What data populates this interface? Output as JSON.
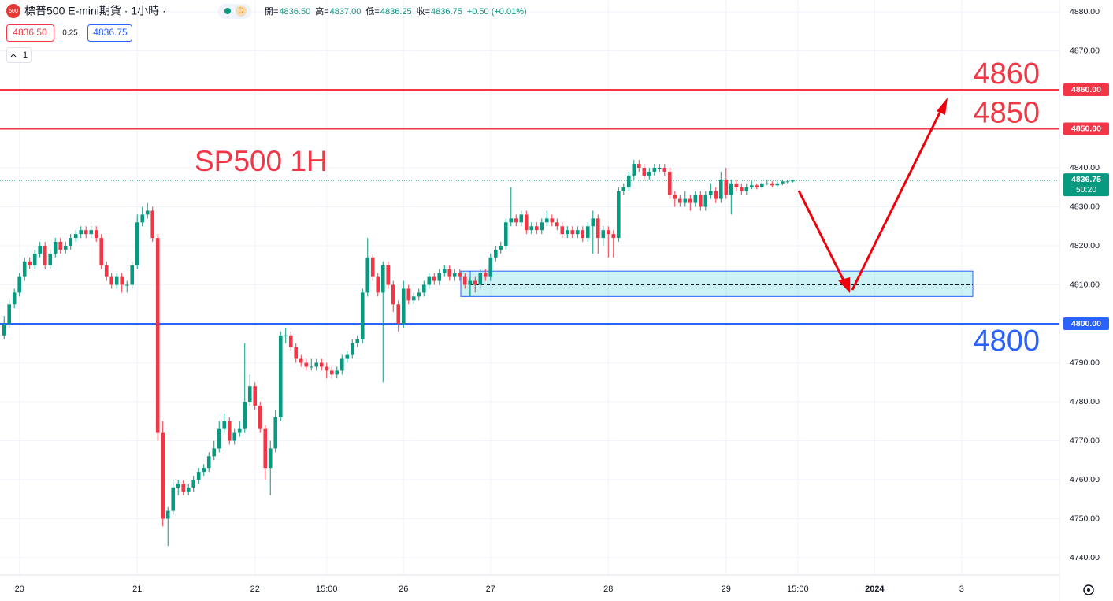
{
  "header": {
    "icon": "500",
    "symbol": "標普500 E-mini期貨 · 1小時 ·",
    "badge": "D",
    "ohlc": [
      {
        "label": "開=",
        "value": "4836.50"
      },
      {
        "label": "高=",
        "value": "4837.00"
      },
      {
        "label": "低=",
        "value": "4836.25"
      },
      {
        "label": "收=",
        "value": "4836.75"
      }
    ],
    "change": "+0.50 (+0.01%)",
    "bid": "4836.50",
    "spread": "0.25",
    "ask": "4836.75",
    "interval": "1"
  },
  "chart_data": {
    "type": "candlestick",
    "title": "SP500 1H",
    "up_color": "#089981",
    "down_color": "#f23645",
    "grid": true,
    "ylim": [
      4740,
      4880
    ],
    "yticks": [
      {
        "value": 4740,
        "label": "4740.00"
      },
      {
        "value": 4750,
        "label": "4750.00"
      },
      {
        "value": 4760,
        "label": "4760.00"
      },
      {
        "value": 4770,
        "label": "4770.00"
      },
      {
        "value": 4780,
        "label": "4780.00"
      },
      {
        "value": 4790,
        "label": "4790.00"
      },
      {
        "value": 4800,
        "label": "4800.00"
      },
      {
        "value": 4810,
        "label": "4810.00"
      },
      {
        "value": 4820,
        "label": "4820.00"
      },
      {
        "value": 4830,
        "label": "4830.00"
      },
      {
        "value": 4840,
        "label": "4840.00"
      },
      {
        "value": 4850,
        "label": "4850.00"
      },
      {
        "value": 4860,
        "label": "4860.00"
      },
      {
        "value": 4870,
        "label": "4870.00"
      },
      {
        "value": 4880,
        "label": "4880.00"
      }
    ],
    "xlim": [
      -0.8,
      206.1
    ],
    "xticks": [
      {
        "value": 3,
        "label": "20"
      },
      {
        "value": 26,
        "label": "21"
      },
      {
        "value": 49,
        "label": "22"
      },
      {
        "value": 63,
        "label": "15:00"
      },
      {
        "value": 78,
        "label": "26"
      },
      {
        "value": 95,
        "label": "27"
      },
      {
        "value": 118,
        "label": "28"
      },
      {
        "value": 141,
        "label": "29"
      },
      {
        "value": 155,
        "label": "15:00"
      },
      {
        "value": 170,
        "label": "2024"
      },
      {
        "value": 187,
        "label": "3"
      }
    ],
    "hlines": [
      {
        "value": 4860,
        "label": "4860.00",
        "text": "4860",
        "color": "#f23645"
      },
      {
        "value": 4850,
        "label": "4850.00",
        "text": "4850",
        "color": "#f23645"
      },
      {
        "value": 4800,
        "label": "4800.00",
        "text": "4800",
        "color": "#2962ff"
      }
    ],
    "current": {
      "value": 4836.75,
      "label": "4836.75",
      "countdown": "50:20",
      "color": "#089981"
    },
    "zone": {
      "from": 4807,
      "to": 4813.5,
      "mid": 4810
    },
    "ohlc": [
      [
        4797,
        4802,
        4796,
        4800
      ],
      [
        4800,
        4806,
        4799,
        4805
      ],
      [
        4805,
        4809,
        4804,
        4808
      ],
      [
        4808,
        4813,
        4807,
        4812
      ],
      [
        4812,
        4817,
        4811,
        4816
      ],
      [
        4816,
        4817,
        4814,
        4815
      ],
      [
        4815,
        4819,
        4814,
        4818
      ],
      [
        4818,
        4821,
        4817,
        4820
      ],
      [
        4820,
        4821,
        4814,
        4815
      ],
      [
        4815,
        4819,
        4814,
        4818
      ],
      [
        4818,
        4822,
        4817,
        4821
      ],
      [
        4821,
        4822,
        4818,
        4819
      ],
      [
        4819,
        4821,
        4818,
        4820
      ],
      [
        4820,
        4823,
        4819,
        4822
      ],
      [
        4822,
        4824,
        4821,
        4823
      ],
      [
        4823,
        4825,
        4822,
        4824
      ],
      [
        4824,
        4825,
        4822,
        4823
      ],
      [
        4823,
        4825,
        4822,
        4824
      ],
      [
        4824,
        4825,
        4821,
        4822
      ],
      [
        4822,
        4823,
        4814,
        4815
      ],
      [
        4815,
        4816,
        4811,
        4812
      ],
      [
        4812,
        4813,
        4809,
        4810
      ],
      [
        4810,
        4813,
        4809,
        4812
      ],
      [
        4812,
        4813,
        4808,
        4810
      ],
      [
        4810,
        4811,
        4808,
        4810
      ],
      [
        4810,
        4816,
        4809,
        4815
      ],
      [
        4815,
        4828,
        4814,
        4826
      ],
      [
        4826,
        4830,
        4825,
        4828
      ],
      [
        4828,
        4831,
        4827,
        4829
      ],
      [
        4829,
        4830,
        4821,
        4822
      ],
      [
        4822,
        4823,
        4770,
        4772
      ],
      [
        4772,
        4775,
        4748,
        4750
      ],
      [
        4750,
        4753,
        4743,
        4752
      ],
      [
        4752,
        4760,
        4751,
        4758
      ],
      [
        4758,
        4760,
        4756,
        4759
      ],
      [
        4759,
        4760,
        4756,
        4757
      ],
      [
        4757,
        4759,
        4756,
        4758
      ],
      [
        4758,
        4761,
        4757,
        4760
      ],
      [
        4760,
        4763,
        4759,
        4762
      ],
      [
        4762,
        4764,
        4761,
        4763
      ],
      [
        4763,
        4767,
        4762,
        4766
      ],
      [
        4766,
        4770,
        4765,
        4768
      ],
      [
        4768,
        4775,
        4767,
        4773
      ],
      [
        4773,
        4777,
        4772,
        4775
      ],
      [
        4775,
        4776,
        4769,
        4770
      ],
      [
        4770,
        4773,
        4769,
        4772
      ],
      [
        4772,
        4775,
        4771,
        4773
      ],
      [
        4773,
        4795,
        4772,
        4780
      ],
      [
        4780,
        4787,
        4779,
        4784
      ],
      [
        4784,
        4785,
        4778,
        4779
      ],
      [
        4779,
        4780,
        4772,
        4773
      ],
      [
        4773,
        4774,
        4760,
        4763
      ],
      [
        4763,
        4770,
        4756,
        4768
      ],
      [
        4768,
        4778,
        4767,
        4776
      ],
      [
        4776,
        4798,
        4775,
        4797
      ],
      [
        4797,
        4799,
        4795,
        4797
      ],
      [
        4797,
        4798,
        4793,
        4794
      ],
      [
        4794,
        4795,
        4790,
        4791
      ],
      [
        4791,
        4792,
        4789,
        4790
      ],
      [
        4790,
        4791,
        4788,
        4789
      ],
      [
        4789,
        4791,
        4788,
        4789
      ],
      [
        4789,
        4791,
        4788,
        4790
      ],
      [
        4790,
        4791,
        4788,
        4789
      ],
      [
        4789,
        4790,
        4786,
        4788
      ],
      [
        4788,
        4789,
        4786,
        4787
      ],
      [
        4787,
        4789,
        4786,
        4788
      ],
      [
        4788,
        4792,
        4787,
        4791
      ],
      [
        4791,
        4793,
        4790,
        4792
      ],
      [
        4792,
        4796,
        4791,
        4795
      ],
      [
        4795,
        4797,
        4794,
        4796
      ],
      [
        4796,
        4809,
        4795,
        4808
      ],
      [
        4808,
        4822,
        4807,
        4817
      ],
      [
        4817,
        4818,
        4811,
        4812
      ],
      [
        4812,
        4813,
        4807,
        4808
      ],
      [
        4808,
        4816,
        4785,
        4815
      ],
      [
        4815,
        4816,
        4809,
        4810
      ],
      [
        4810,
        4811,
        4803,
        4805
      ],
      [
        4805,
        4806,
        4798,
        4800
      ],
      [
        4800,
        4811,
        4799,
        4809
      ],
      [
        4809,
        4810,
        4805,
        4806
      ],
      [
        4806,
        4808,
        4805,
        4807
      ],
      [
        4807,
        4809,
        4806,
        4808
      ],
      [
        4808,
        4811,
        4807,
        4810
      ],
      [
        4810,
        4813,
        4809,
        4812
      ],
      [
        4812,
        4813,
        4810,
        4811
      ],
      [
        4811,
        4814,
        4810,
        4813
      ],
      [
        4813,
        4815,
        4812,
        4814
      ],
      [
        4814,
        4815,
        4811,
        4812
      ],
      [
        4812,
        4814,
        4811,
        4813
      ],
      [
        4813,
        4814,
        4811,
        4812
      ],
      [
        4812,
        4813,
        4809,
        4810
      ],
      [
        4810,
        4812,
        4807,
        4811
      ],
      [
        4811,
        4812,
        4808,
        4810
      ],
      [
        4810,
        4814,
        4809,
        4813
      ],
      [
        4813,
        4814,
        4811,
        4812
      ],
      [
        4812,
        4818,
        4811,
        4817
      ],
      [
        4817,
        4820,
        4816,
        4819
      ],
      [
        4819,
        4821,
        4818,
        4820
      ],
      [
        4820,
        4827,
        4819,
        4826
      ],
      [
        4826,
        4835,
        4825,
        4827
      ],
      [
        4827,
        4828,
        4825,
        4826
      ],
      [
        4826,
        4829,
        4825,
        4828
      ],
      [
        4828,
        4829,
        4823,
        4824
      ],
      [
        4824,
        4826,
        4823,
        4825
      ],
      [
        4825,
        4826,
        4823,
        4824
      ],
      [
        4824,
        4827,
        4823,
        4826
      ],
      [
        4826,
        4829,
        4825,
        4827
      ],
      [
        4827,
        4828,
        4825,
        4826
      ],
      [
        4826,
        4827,
        4824,
        4825
      ],
      [
        4825,
        4826,
        4822,
        4823
      ],
      [
        4823,
        4825,
        4822,
        4824
      ],
      [
        4824,
        4825,
        4822,
        4823
      ],
      [
        4823,
        4825,
        4822,
        4824
      ],
      [
        4824,
        4825,
        4821,
        4822
      ],
      [
        4822,
        4826,
        4821,
        4825
      ],
      [
        4825,
        4829,
        4818,
        4827
      ],
      [
        4827,
        4828,
        4818,
        4822
      ],
      [
        4822,
        4825,
        4820,
        4824
      ],
      [
        4824,
        4825,
        4817,
        4823
      ],
      [
        4823,
        4824,
        4817,
        4822
      ],
      [
        4822,
        4835,
        4821,
        4834
      ],
      [
        4834,
        4836,
        4833,
        4835
      ],
      [
        4835,
        4839,
        4834,
        4838
      ],
      [
        4838,
        4842,
        4837,
        4841
      ],
      [
        4841,
        4842,
        4839,
        4840
      ],
      [
        4840,
        4841,
        4837,
        4838
      ],
      [
        4838,
        4840,
        4837,
        4839
      ],
      [
        4839,
        4841,
        4838,
        4840
      ],
      [
        4840,
        4841,
        4839,
        4840
      ],
      [
        4840,
        4841,
        4838,
        4839
      ],
      [
        4839,
        4840,
        4832,
        4833
      ],
      [
        4833,
        4834,
        4830,
        4832
      ],
      [
        4832,
        4833,
        4830,
        4831
      ],
      [
        4831,
        4834,
        4830,
        4832
      ],
      [
        4832,
        4833,
        4829,
        4831
      ],
      [
        4831,
        4834,
        4830,
        4833
      ],
      [
        4833,
        4834,
        4829,
        4830
      ],
      [
        4830,
        4834,
        4829,
        4833
      ],
      [
        4833,
        4836,
        4832,
        4834
      ],
      [
        4834,
        4835,
        4831,
        4832
      ],
      [
        4832,
        4839,
        4831,
        4837
      ],
      [
        4837,
        4840,
        4832,
        4833
      ],
      [
        4833,
        4837,
        4828,
        4836
      ],
      [
        4836,
        4837,
        4834,
        4835
      ],
      [
        4835,
        4836,
        4833,
        4834
      ],
      [
        4834,
        4836,
        4833,
        4835
      ],
      [
        4835,
        4836.5,
        4834.5,
        4835.5
      ],
      [
        4835.5,
        4836,
        4834.5,
        4835
      ],
      [
        4835,
        4836.5,
        4834.5,
        4836
      ],
      [
        4836,
        4837,
        4835.5,
        4836
      ],
      [
        4836,
        4836.5,
        4835,
        4835.5
      ],
      [
        4835.5,
        4836.5,
        4835,
        4836
      ],
      [
        4836,
        4837,
        4835.5,
        4836.5
      ],
      [
        4836.5,
        4837,
        4836,
        4836.5
      ],
      [
        4836.5,
        4837,
        4836.25,
        4836.75
      ]
    ]
  }
}
